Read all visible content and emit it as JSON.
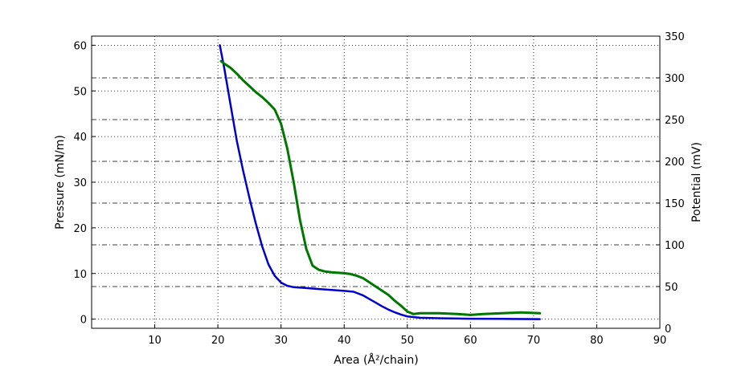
{
  "chart_data": {
    "type": "line",
    "xlabel": "Area (Å²/chain)",
    "ylabel_left": "Pressure (mN/m)",
    "ylabel_right": "Potential (mV)",
    "xlim": [
      0,
      90
    ],
    "ylim_left": [
      -2,
      62
    ],
    "ylim_right": [
      0,
      350
    ],
    "x_ticks": [
      10,
      20,
      30,
      40,
      50,
      60,
      70,
      80,
      90
    ],
    "y_ticks_left": [
      0,
      10,
      20,
      30,
      40,
      50,
      60
    ],
    "y_ticks_right": [
      0,
      50,
      100,
      150,
      200,
      250,
      300,
      350
    ],
    "grid": true,
    "series": [
      {
        "axis": "left",
        "color": "#0000cc",
        "points": [
          [
            20.3,
            60
          ],
          [
            21,
            55
          ],
          [
            22,
            47
          ],
          [
            23,
            39
          ],
          [
            24,
            32.5
          ],
          [
            25,
            26.5
          ],
          [
            26,
            21
          ],
          [
            27,
            16
          ],
          [
            28,
            12
          ],
          [
            29,
            9.5
          ],
          [
            30,
            8
          ],
          [
            31,
            7.3
          ],
          [
            32,
            7
          ],
          [
            34,
            6.8
          ],
          [
            36,
            6.6
          ],
          [
            38,
            6.4
          ],
          [
            40,
            6.2
          ],
          [
            41.5,
            6
          ],
          [
            43,
            5.2
          ],
          [
            44,
            4.4
          ],
          [
            45,
            3.6
          ],
          [
            46,
            2.8
          ],
          [
            47,
            2.1
          ],
          [
            48,
            1.5
          ],
          [
            49,
            1
          ],
          [
            50,
            0.6
          ],
          [
            52,
            0.3
          ],
          [
            55,
            0.2
          ],
          [
            60,
            0.1
          ],
          [
            65,
            0.05
          ],
          [
            71,
            0
          ]
        ]
      },
      {
        "axis": "right",
        "color": "#007700",
        "points": [
          [
            20.5,
            320
          ],
          [
            21,
            317
          ],
          [
            22,
            312
          ],
          [
            23,
            305
          ],
          [
            24,
            297
          ],
          [
            25,
            290
          ],
          [
            26,
            283
          ],
          [
            27,
            277
          ],
          [
            28,
            270
          ],
          [
            29,
            262
          ],
          [
            30,
            245
          ],
          [
            31,
            215
          ],
          [
            32,
            175
          ],
          [
            33,
            130
          ],
          [
            34,
            95
          ],
          [
            35,
            75
          ],
          [
            36,
            70
          ],
          [
            37,
            68
          ],
          [
            38,
            67
          ],
          [
            40,
            66
          ],
          [
            41,
            65
          ],
          [
            42,
            63
          ],
          [
            43,
            60
          ],
          [
            44,
            55
          ],
          [
            45,
            50
          ],
          [
            46,
            45
          ],
          [
            47,
            40
          ],
          [
            48,
            33
          ],
          [
            49,
            27
          ],
          [
            50,
            20
          ],
          [
            51,
            17
          ],
          [
            52,
            18
          ],
          [
            55,
            18
          ],
          [
            58,
            17
          ],
          [
            60,
            16
          ],
          [
            62,
            17
          ],
          [
            65,
            18
          ],
          [
            68,
            19
          ],
          [
            71,
            18
          ]
        ]
      }
    ]
  }
}
